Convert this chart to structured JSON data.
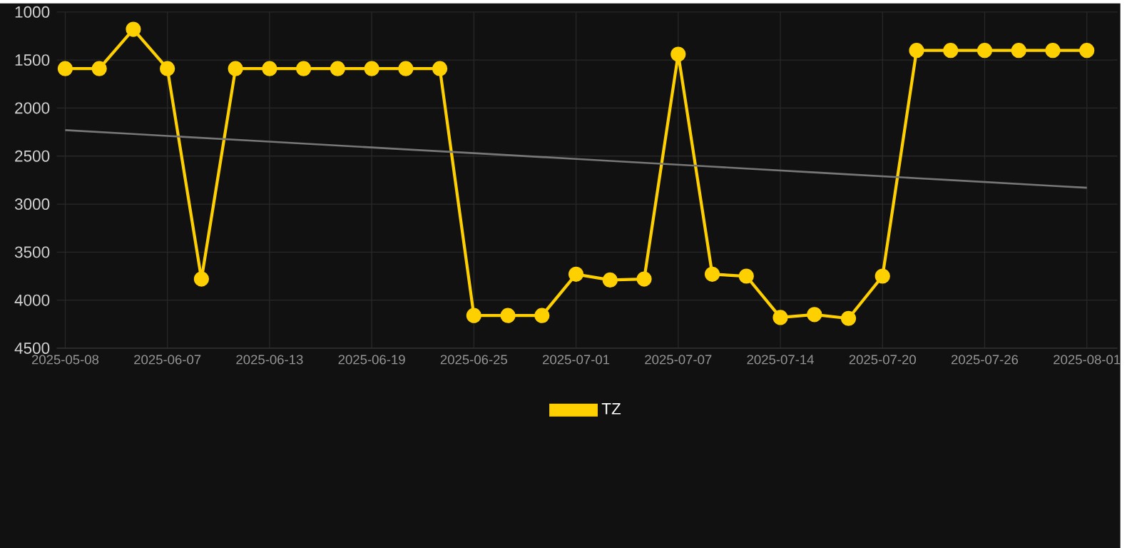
{
  "chart_data": {
    "type": "line",
    "categories": [
      "2025-05-08",
      null,
      null,
      "2025-06-07",
      null,
      null,
      "2025-06-13",
      null,
      null,
      "2025-06-19",
      null,
      null,
      "2025-06-25",
      null,
      null,
      "2025-07-01",
      null,
      null,
      "2025-07-07",
      null,
      null,
      "2025-07-14",
      null,
      null,
      "2025-07-20",
      null,
      null,
      "2025-07-26",
      null,
      null,
      "2025-08-01"
    ],
    "series": [
      {
        "name": "TZ",
        "color": "#ffd000",
        "marker": "circle",
        "values": [
          1590,
          1590,
          1180,
          1590,
          3780,
          1590,
          1590,
          1590,
          1590,
          1590,
          1590,
          1590,
          4160,
          4160,
          4160,
          3730,
          3790,
          3780,
          1440,
          3730,
          3750,
          4180,
          4150,
          4190,
          3750,
          1400,
          1400,
          1400,
          1400,
          1400,
          1400
        ]
      },
      {
        "color": "#777777",
        "marker": "none",
        "values": [
          2230,
          2250,
          2270,
          2290,
          2310,
          2330,
          2350,
          2370,
          2390,
          2410,
          2430,
          2450,
          2470,
          2490,
          2510,
          2530,
          2550,
          2570,
          2590,
          2610,
          2630,
          2650,
          2670,
          2690,
          2710,
          2730,
          2750,
          2770,
          2790,
          2810,
          2830
        ]
      }
    ],
    "ylim": [
      4500,
      1000
    ],
    "yticks": [
      1000,
      1500,
      2000,
      2500,
      3000,
      3500,
      4000,
      4500
    ],
    "grid": true,
    "legend": "bottom"
  }
}
